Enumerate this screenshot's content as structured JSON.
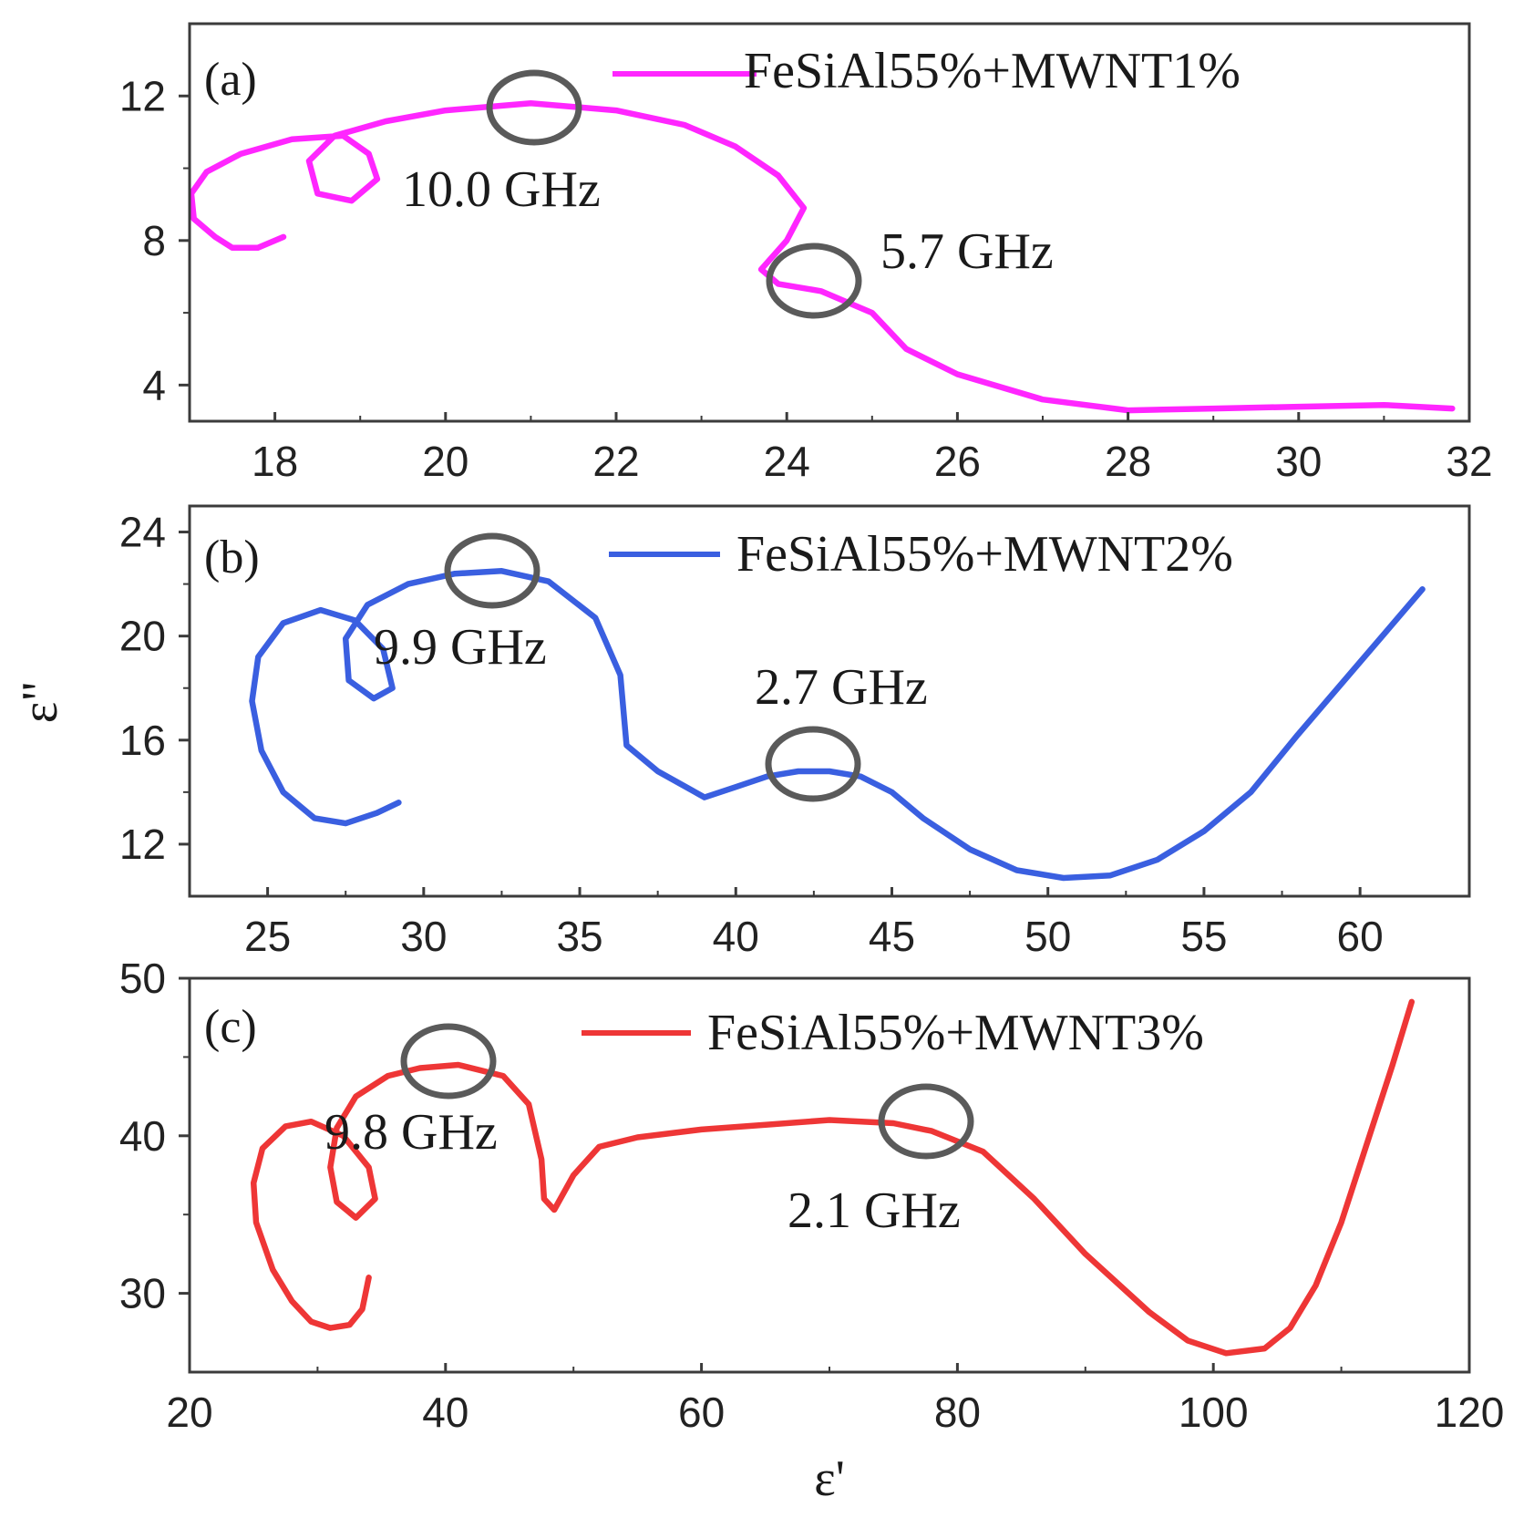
{
  "chart_data": [
    {
      "type": "line",
      "panel_label": "(a)",
      "series": [
        {
          "name": "FeSiAl55%+MWNT1%",
          "color": "#ff26ff"
        }
      ],
      "xlim": [
        17,
        32
      ],
      "ylim": [
        3,
        14
      ],
      "x_ticks": [
        18,
        20,
        22,
        24,
        26,
        28,
        30,
        32
      ],
      "y_ticks": [
        4,
        8,
        12
      ],
      "points": [
        [
          18.1,
          8.1
        ],
        [
          17.8,
          7.8
        ],
        [
          17.5,
          7.8
        ],
        [
          17.3,
          8.1
        ],
        [
          17.05,
          8.6
        ],
        [
          17.02,
          9.3
        ],
        [
          17.2,
          9.9
        ],
        [
          17.6,
          10.4
        ],
        [
          18.2,
          10.8
        ],
        [
          18.8,
          10.9
        ],
        [
          19.1,
          10.4
        ],
        [
          19.2,
          9.7
        ],
        [
          18.9,
          9.1
        ],
        [
          18.5,
          9.3
        ],
        [
          18.4,
          10.2
        ],
        [
          18.7,
          10.9
        ],
        [
          19.3,
          11.3
        ],
        [
          20.0,
          11.6
        ],
        [
          21.0,
          11.8
        ],
        [
          22.0,
          11.6
        ],
        [
          22.8,
          11.2
        ],
        [
          23.4,
          10.6
        ],
        [
          23.9,
          9.8
        ],
        [
          24.2,
          8.9
        ],
        [
          24.0,
          8.0
        ],
        [
          23.7,
          7.2
        ],
        [
          23.9,
          6.8
        ],
        [
          24.4,
          6.6
        ],
        [
          25.0,
          6.0
        ],
        [
          25.4,
          5.0
        ],
        [
          26.0,
          4.3
        ],
        [
          27.0,
          3.6
        ],
        [
          28.0,
          3.3
        ],
        [
          29.0,
          3.35
        ],
        [
          30.0,
          3.4
        ],
        [
          31.0,
          3.45
        ],
        [
          31.8,
          3.35
        ]
      ],
      "annotations": [
        {
          "label": "10.0 GHz",
          "at": [
            21.0,
            11.8
          ]
        },
        {
          "label": "5.7 GHz",
          "at": [
            24.3,
            6.9
          ]
        }
      ]
    },
    {
      "type": "line",
      "panel_label": "(b)",
      "series": [
        {
          "name": "FeSiAl55%+MWNT2%",
          "color": "#3a5fe0"
        }
      ],
      "xlim": [
        22.5,
        63.5
      ],
      "ylim": [
        10,
        25
      ],
      "x_ticks": [
        25,
        30,
        35,
        40,
        45,
        50,
        55,
        60
      ],
      "y_ticks": [
        12,
        16,
        20,
        24
      ],
      "ylabel": "ε\"",
      "points": [
        [
          29.2,
          13.6
        ],
        [
          28.5,
          13.2
        ],
        [
          27.5,
          12.8
        ],
        [
          26.5,
          13.0
        ],
        [
          25.5,
          14.0
        ],
        [
          24.8,
          15.6
        ],
        [
          24.5,
          17.5
        ],
        [
          24.7,
          19.2
        ],
        [
          25.5,
          20.5
        ],
        [
          26.7,
          21.0
        ],
        [
          27.8,
          20.6
        ],
        [
          28.7,
          19.5
        ],
        [
          29.0,
          18.0
        ],
        [
          28.4,
          17.6
        ],
        [
          27.6,
          18.3
        ],
        [
          27.5,
          19.9
        ],
        [
          28.2,
          21.2
        ],
        [
          29.5,
          22.0
        ],
        [
          31.0,
          22.4
        ],
        [
          32.5,
          22.5
        ],
        [
          34.0,
          22.1
        ],
        [
          35.5,
          20.7
        ],
        [
          36.3,
          18.5
        ],
        [
          36.5,
          15.8
        ],
        [
          37.5,
          14.8
        ],
        [
          39.0,
          13.8
        ],
        [
          40.0,
          14.2
        ],
        [
          41.0,
          14.6
        ],
        [
          42.0,
          14.8
        ],
        [
          43.0,
          14.8
        ],
        [
          44.0,
          14.6
        ],
        [
          45.0,
          14.0
        ],
        [
          46.0,
          13.0
        ],
        [
          47.5,
          11.8
        ],
        [
          49.0,
          11.0
        ],
        [
          50.5,
          10.7
        ],
        [
          52.0,
          10.8
        ],
        [
          53.5,
          11.4
        ],
        [
          55.0,
          12.5
        ],
        [
          56.5,
          14.0
        ],
        [
          58.0,
          16.2
        ],
        [
          60.0,
          19.0
        ],
        [
          62.0,
          21.8
        ]
      ],
      "annotations": [
        {
          "label": "9.9 GHz",
          "at": [
            32.2,
            22.5
          ]
        },
        {
          "label": "2.7 GHz",
          "at": [
            42.5,
            15.1
          ]
        }
      ]
    },
    {
      "type": "line",
      "panel_label": "(c)",
      "series": [
        {
          "name": "FeSiAl55%+MWNT3%",
          "color": "#ee3636"
        }
      ],
      "xlim": [
        20,
        120
      ],
      "ylim": [
        25,
        50
      ],
      "x_ticks": [
        20,
        40,
        60,
        80,
        100,
        120
      ],
      "y_ticks": [
        30,
        40,
        50
      ],
      "xlabel": "ε'",
      "points": [
        [
          34.0,
          31.0
        ],
        [
          33.5,
          29.0
        ],
        [
          32.5,
          28.0
        ],
        [
          31.0,
          27.8
        ],
        [
          29.5,
          28.2
        ],
        [
          28.0,
          29.5
        ],
        [
          26.5,
          31.5
        ],
        [
          25.2,
          34.5
        ],
        [
          25.0,
          37.0
        ],
        [
          25.7,
          39.2
        ],
        [
          27.5,
          40.6
        ],
        [
          29.5,
          40.9
        ],
        [
          32.0,
          40.0
        ],
        [
          34.0,
          38.0
        ],
        [
          34.5,
          36.0
        ],
        [
          33.0,
          34.8
        ],
        [
          31.5,
          35.8
        ],
        [
          31.0,
          38.0
        ],
        [
          31.5,
          40.5
        ],
        [
          33.0,
          42.5
        ],
        [
          35.5,
          43.8
        ],
        [
          38.0,
          44.3
        ],
        [
          41.0,
          44.5
        ],
        [
          44.5,
          43.8
        ],
        [
          46.5,
          42.0
        ],
        [
          47.5,
          38.5
        ],
        [
          47.7,
          36.0
        ],
        [
          48.5,
          35.3
        ],
        [
          50.0,
          37.5
        ],
        [
          52.0,
          39.3
        ],
        [
          55.0,
          39.9
        ],
        [
          60.0,
          40.4
        ],
        [
          65.0,
          40.7
        ],
        [
          70.0,
          41.0
        ],
        [
          75.0,
          40.8
        ],
        [
          78.0,
          40.3
        ],
        [
          82.0,
          39.0
        ],
        [
          86.0,
          36.0
        ],
        [
          90.0,
          32.5
        ],
        [
          95.0,
          28.8
        ],
        [
          98.0,
          27.0
        ],
        [
          101.0,
          26.2
        ],
        [
          104.0,
          26.5
        ],
        [
          106.0,
          27.8
        ],
        [
          108.0,
          30.5
        ],
        [
          110.0,
          34.5
        ],
        [
          112.0,
          39.5
        ],
        [
          114.0,
          44.5
        ],
        [
          115.5,
          48.5
        ]
      ],
      "annotations": [
        {
          "label": "9.8 GHz",
          "at": [
            40.0,
            44.7
          ]
        },
        {
          "label": "2.1 GHz",
          "at": [
            77.5,
            40.9
          ]
        }
      ]
    }
  ]
}
